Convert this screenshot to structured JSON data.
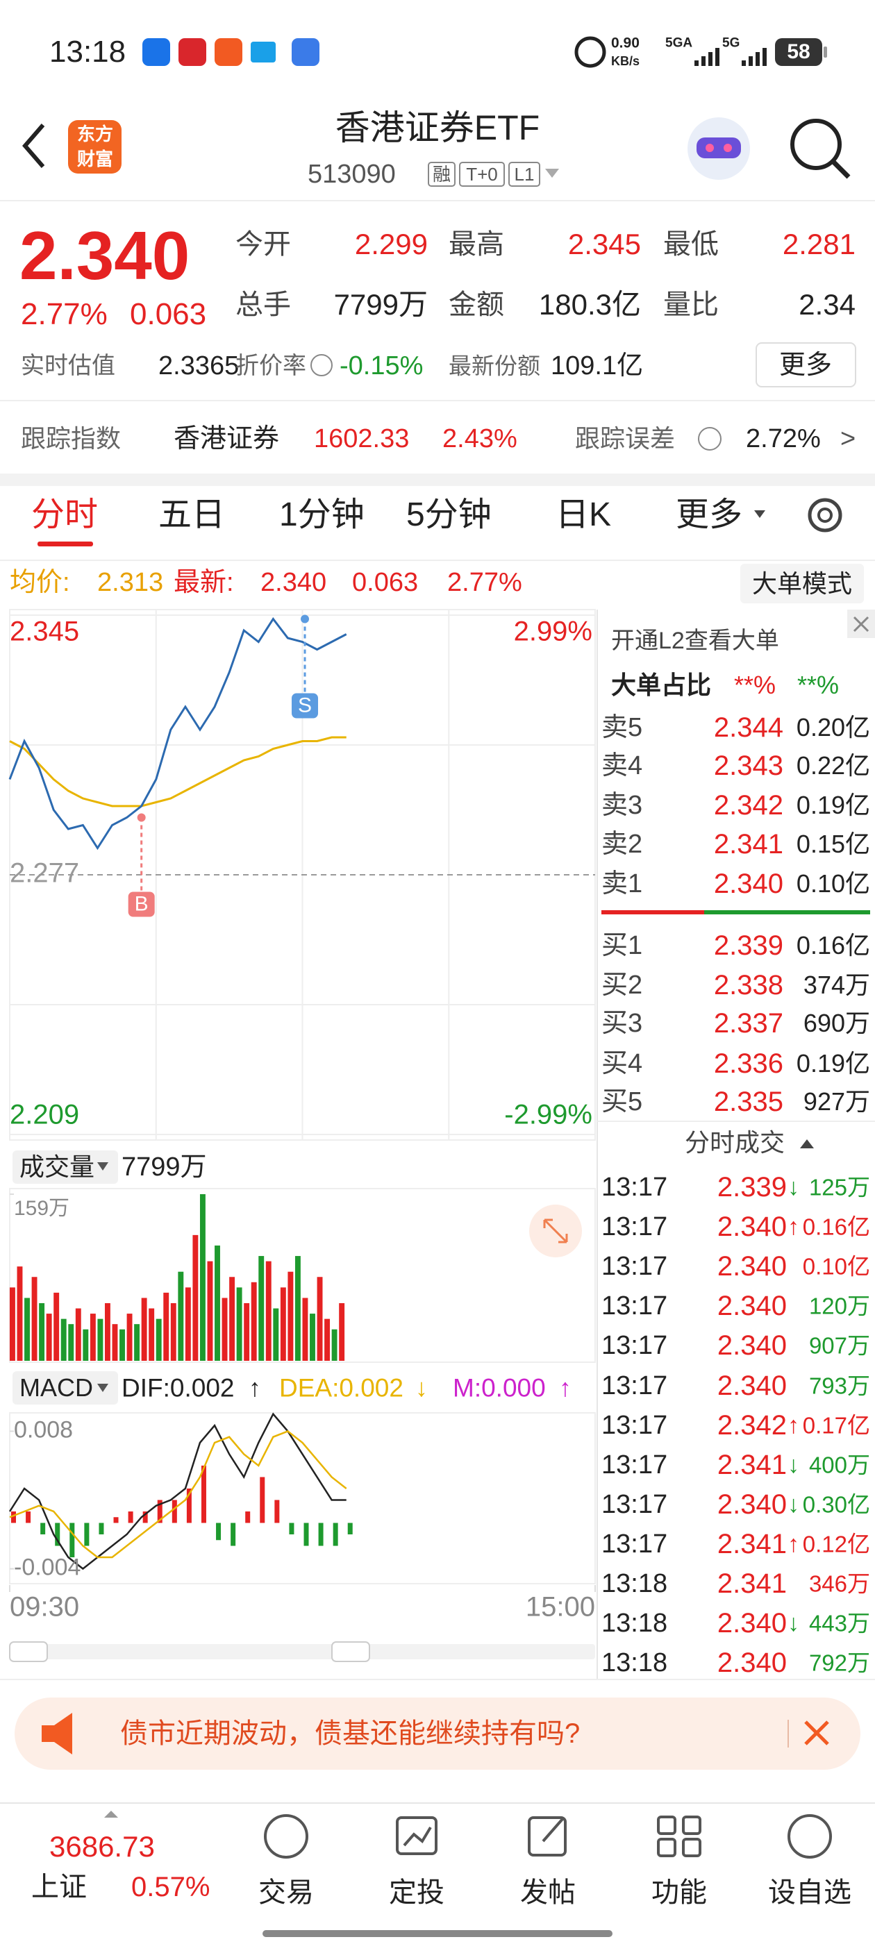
{
  "status_bar": {
    "time": "13:18",
    "speed": "0.90",
    "speed_unit": "KB/s",
    "network_1": "5GA",
    "network_2": "5G",
    "battery": "58"
  },
  "header": {
    "logo": [
      "东方",
      "财富"
    ],
    "title": "香港证券ETF",
    "code": "513090",
    "tags": [
      "融",
      "T+0",
      "L1"
    ]
  },
  "quote": {
    "price": "2.340",
    "change_pct": "2.77%",
    "change": "0.063",
    "stats": [
      {
        "label": "今开",
        "value": "2.299"
      },
      {
        "label": "最高",
        "value": "2.345"
      },
      {
        "label": "最低",
        "value": "2.281"
      },
      {
        "label": "总手",
        "value": "7799万"
      },
      {
        "label": "金额",
        "value": "180.3亿"
      },
      {
        "label": "量比",
        "value": "2.34"
      }
    ],
    "estimate": {
      "label": "实时估值",
      "value": "2.3365"
    },
    "premium": {
      "label": "折价率",
      "value": "-0.15%"
    },
    "shares": {
      "label": "最新份额",
      "value": "109.1亿"
    },
    "more_button": "更多"
  },
  "tracking": {
    "label": "跟踪指数",
    "index_name": "香港证券",
    "index_value": "1602.33",
    "index_pct": "2.43%",
    "error_label": "跟踪误差",
    "error_value": "2.72%",
    "arrow": ">"
  },
  "tabs": [
    "分时",
    "五日",
    "1分钟",
    "5分钟",
    "日K",
    "更多"
  ],
  "info_line": {
    "avg_label": "均价:",
    "avg": "2.313",
    "last_label": "最新:",
    "last": "2.340",
    "change": "0.063",
    "pct": "2.77%",
    "mode_button": "大单模式"
  },
  "chart_data": [
    {
      "type": "line",
      "x": [
        0,
        6,
        12,
        18,
        24,
        30,
        36,
        42,
        48,
        54,
        60,
        66,
        72,
        78,
        84,
        90,
        96,
        102,
        108,
        114,
        120,
        126,
        132,
        138
      ],
      "series": [
        {
          "color": "#2c6ab0",
          "values": [
            2.302,
            2.312,
            2.305,
            2.294,
            2.289,
            2.29,
            2.284,
            2.29,
            2.292,
            2.295,
            2.302,
            2.315,
            2.321,
            2.315,
            2.321,
            2.33,
            2.341,
            2.338,
            2.344,
            2.339,
            2.338,
            2.336,
            2.338,
            2.34
          ]
        },
        {
          "color": "#e8b400",
          "values": [
            2.312,
            2.31,
            2.306,
            2.302,
            2.299,
            2.297,
            2.296,
            2.295,
            2.295,
            2.295,
            2.296,
            2.297,
            2.299,
            2.301,
            2.303,
            2.305,
            2.307,
            2.308,
            2.31,
            2.311,
            2.312,
            2.312,
            2.313,
            2.313
          ]
        }
      ],
      "xlim": [
        0,
        240
      ],
      "xticks": [
        {
          "value": 0,
          "label": "09:30"
        },
        {
          "value": 240,
          "label": "15:00"
        }
      ],
      "ylim": [
        2.209,
        2.345
      ],
      "yticks": [
        2.345,
        2.277,
        2.209
      ],
      "ytick_colors": [
        "#e52222",
        "#999999",
        "#1e9a2e"
      ],
      "y2lim": [
        -2.99,
        2.99
      ],
      "y2ticks": [
        {
          "value": 2.99,
          "label": "2.99%"
        },
        {
          "value": -2.99,
          "label": "-2.99%"
        }
      ],
      "y2tick_colors": [
        "#e52222",
        "#1e9a2e"
      ],
      "markers": [
        {
          "label": "B",
          "x": 54,
          "value": 2.292,
          "color": "#f07c7c"
        },
        {
          "label": "S",
          "x": 121,
          "value": 2.344,
          "color": "#5b9be0"
        }
      ]
    },
    {
      "type": "bar",
      "label": "成交量",
      "total": "7799万",
      "x": [
        0,
        3,
        6,
        9,
        12,
        15,
        18,
        21,
        24,
        27,
        30,
        33,
        36,
        39,
        42,
        45,
        48,
        51,
        54,
        57,
        60,
        63,
        66,
        69,
        72,
        75,
        78,
        81,
        84,
        87,
        90,
        93,
        96,
        99,
        102,
        105,
        108,
        111,
        114,
        117,
        120,
        123,
        126,
        129,
        132,
        135
      ],
      "values": [
        70,
        90,
        60,
        80,
        55,
        45,
        65,
        40,
        35,
        50,
        30,
        45,
        40,
        55,
        35,
        30,
        45,
        35,
        60,
        50,
        40,
        65,
        55,
        85,
        70,
        120,
        159,
        95,
        110,
        60,
        80,
        70,
        55,
        75,
        100,
        95,
        50,
        70,
        85,
        100,
        60,
        45,
        80,
        40,
        30,
        55
      ],
      "colors": [
        "#e52222",
        "#e52222",
        "#1e9a2e",
        "#e52222",
        "#1e9a2e",
        "#e52222",
        "#e52222",
        "#1e9a2e",
        "#1e9a2e",
        "#e52222",
        "#1e9a2e",
        "#e52222",
        "#1e9a2e",
        "#e52222",
        "#e52222",
        "#1e9a2e",
        "#e52222",
        "#1e9a2e",
        "#e52222",
        "#e52222",
        "#1e9a2e",
        "#e52222",
        "#e52222",
        "#1e9a2e",
        "#e52222",
        "#e52222",
        "#1e9a2e",
        "#e52222",
        "#1e9a2e",
        "#e52222",
        "#e52222",
        "#1e9a2e",
        "#e52222",
        "#e52222",
        "#1e9a2e",
        "#e52222",
        "#1e9a2e",
        "#e52222",
        "#e52222",
        "#1e9a2e",
        "#e52222",
        "#1e9a2e",
        "#e52222",
        "#e52222",
        "#1e9a2e",
        "#e52222"
      ],
      "xlim": [
        0,
        240
      ],
      "ylim": [
        0,
        159
      ],
      "yticks": [
        {
          "value": 159,
          "label": "159万"
        }
      ]
    },
    {
      "type": "macd",
      "label": "MACD",
      "dif_label": "DIF:0.002",
      "dea_label": "DEA:0.002",
      "m_label": "M:0.000",
      "arrows": [
        "↑",
        "↓",
        "↑"
      ],
      "x": [
        0,
        6,
        12,
        18,
        24,
        30,
        36,
        42,
        48,
        54,
        60,
        66,
        72,
        78,
        84,
        90,
        96,
        102,
        108,
        114,
        120,
        126,
        132,
        138
      ],
      "series": [
        {
          "color": "#222222",
          "values": [
            0.001,
            0.003,
            0.002,
            -0.001,
            -0.003,
            -0.004,
            -0.003,
            -0.002,
            -0.001,
            0.0005,
            0.0015,
            0.002,
            0.003,
            0.007,
            0.0085,
            0.006,
            0.004,
            0.007,
            0.0095,
            0.008,
            0.006,
            0.004,
            0.002,
            0.002
          ]
        },
        {
          "color": "#e8b400",
          "values": [
            0.0005,
            0.001,
            0.0015,
            0.001,
            -0.0005,
            -0.002,
            -0.003,
            -0.003,
            -0.002,
            -0.001,
            0,
            0.001,
            0.002,
            0.004,
            0.007,
            0.0075,
            0.006,
            0.005,
            0.0075,
            0.008,
            0.007,
            0.0055,
            0.004,
            0.003
          ]
        }
      ],
      "histogram": [
        0.001,
        0.001,
        -0.001,
        -0.002,
        -0.003,
        -0.002,
        -0.001,
        0.0005,
        0.001,
        0.001,
        0.002,
        0.002,
        0.003,
        0.005,
        -0.0015,
        -0.002,
        0.001,
        0.004,
        0.002,
        -0.001,
        -0.002,
        -0.002,
        -0.002,
        -0.001
      ],
      "up_color": "#e52222",
      "down_color": "#1e9a2e",
      "label_colors": [
        "#222222",
        "#e8b400",
        "#cc22cc"
      ],
      "xlim": [
        0,
        240
      ],
      "ylim": [
        -0.0053,
        0.0096
      ],
      "yticks": [
        0.008,
        -0.004
      ]
    }
  ],
  "order_book": {
    "promo": "开通L2查看大单",
    "ratio_label": "大单占比",
    "ratio_buy": "**%",
    "ratio_sell": "**%",
    "asks": [
      {
        "label": "卖5",
        "price": "2.344",
        "volume": "0.20亿"
      },
      {
        "label": "卖4",
        "price": "2.343",
        "volume": "0.22亿"
      },
      {
        "label": "卖3",
        "price": "2.342",
        "volume": "0.19亿"
      },
      {
        "label": "卖2",
        "price": "2.341",
        "volume": "0.15亿"
      },
      {
        "label": "卖1",
        "price": "2.340",
        "volume": "0.10亿"
      }
    ],
    "bids": [
      {
        "label": "买1",
        "price": "2.339",
        "volume": "0.16亿"
      },
      {
        "label": "买2",
        "price": "2.338",
        "volume": "374万"
      },
      {
        "label": "买3",
        "price": "2.337",
        "volume": "690万"
      },
      {
        "label": "买4",
        "price": "2.336",
        "volume": "0.19亿"
      },
      {
        "label": "买5",
        "price": "2.335",
        "volume": "927万"
      }
    ]
  },
  "trades": {
    "title": "分时成交",
    "rows": [
      {
        "time": "13:17",
        "price": "2.339",
        "arrow": "↓",
        "volume": "125万",
        "color": "#1e9a2e"
      },
      {
        "time": "13:17",
        "price": "2.340",
        "arrow": "↑",
        "volume": "0.16亿",
        "color": "#e52222"
      },
      {
        "time": "13:17",
        "price": "2.340",
        "volume": "0.10亿",
        "color": "#e52222"
      },
      {
        "time": "13:17",
        "price": "2.340",
        "volume": "120万",
        "color": "#1e9a2e"
      },
      {
        "time": "13:17",
        "price": "2.340",
        "volume": "907万",
        "color": "#1e9a2e"
      },
      {
        "time": "13:17",
        "price": "2.340",
        "volume": "793万",
        "color": "#1e9a2e"
      },
      {
        "time": "13:17",
        "price": "2.342",
        "arrow": "↑",
        "volume": "0.17亿",
        "color": "#e52222"
      },
      {
        "time": "13:17",
        "price": "2.341",
        "arrow": "↓",
        "volume": "400万",
        "color": "#1e9a2e"
      },
      {
        "time": "13:17",
        "price": "2.340",
        "arrow": "↓",
        "volume": "0.30亿",
        "color": "#1e9a2e"
      },
      {
        "time": "13:17",
        "price": "2.341",
        "arrow": "↑",
        "volume": "0.12亿",
        "color": "#e52222"
      },
      {
        "time": "13:18",
        "price": "2.341",
        "volume": "346万",
        "color": "#e52222"
      },
      {
        "time": "13:18",
        "price": "2.340",
        "arrow": "↓",
        "volume": "443万",
        "color": "#1e9a2e"
      },
      {
        "time": "13:18",
        "price": "2.340",
        "volume": "792万",
        "color": "#1e9a2e"
      }
    ]
  },
  "banner": {
    "text": "债市近期波动，债基还能继续持有吗?"
  },
  "bottom_nav": {
    "index_value": "3686.73",
    "index_name": "上证",
    "index_pct": "0.57%",
    "items": [
      "交易",
      "定投",
      "发帖",
      "功能",
      "设自选"
    ]
  }
}
